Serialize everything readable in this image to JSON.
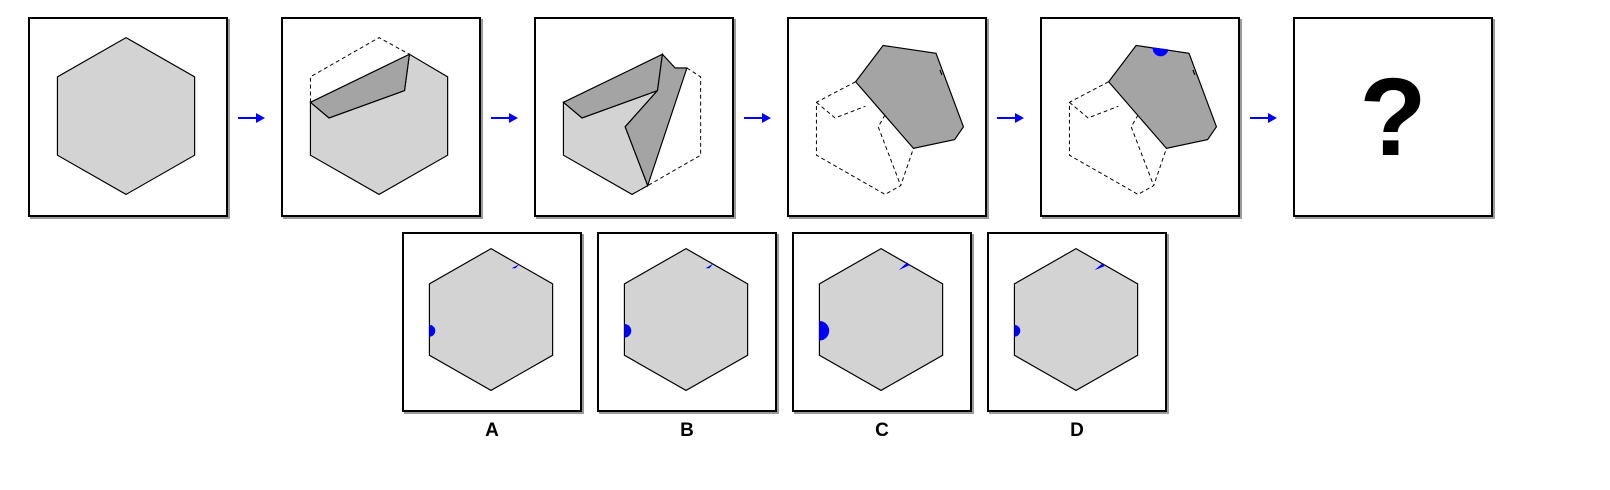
{
  "sequence": {
    "question_mark": "?"
  },
  "options": [
    {
      "label": "A"
    },
    {
      "label": "B"
    },
    {
      "label": "C"
    },
    {
      "label": "D"
    }
  ],
  "colors": {
    "hexagon_fill": "#d3d3d3",
    "fold_fill": "#a4a4a4",
    "dot": "#0000ff",
    "arrow": "#0000ff",
    "outline": "#000000"
  }
}
